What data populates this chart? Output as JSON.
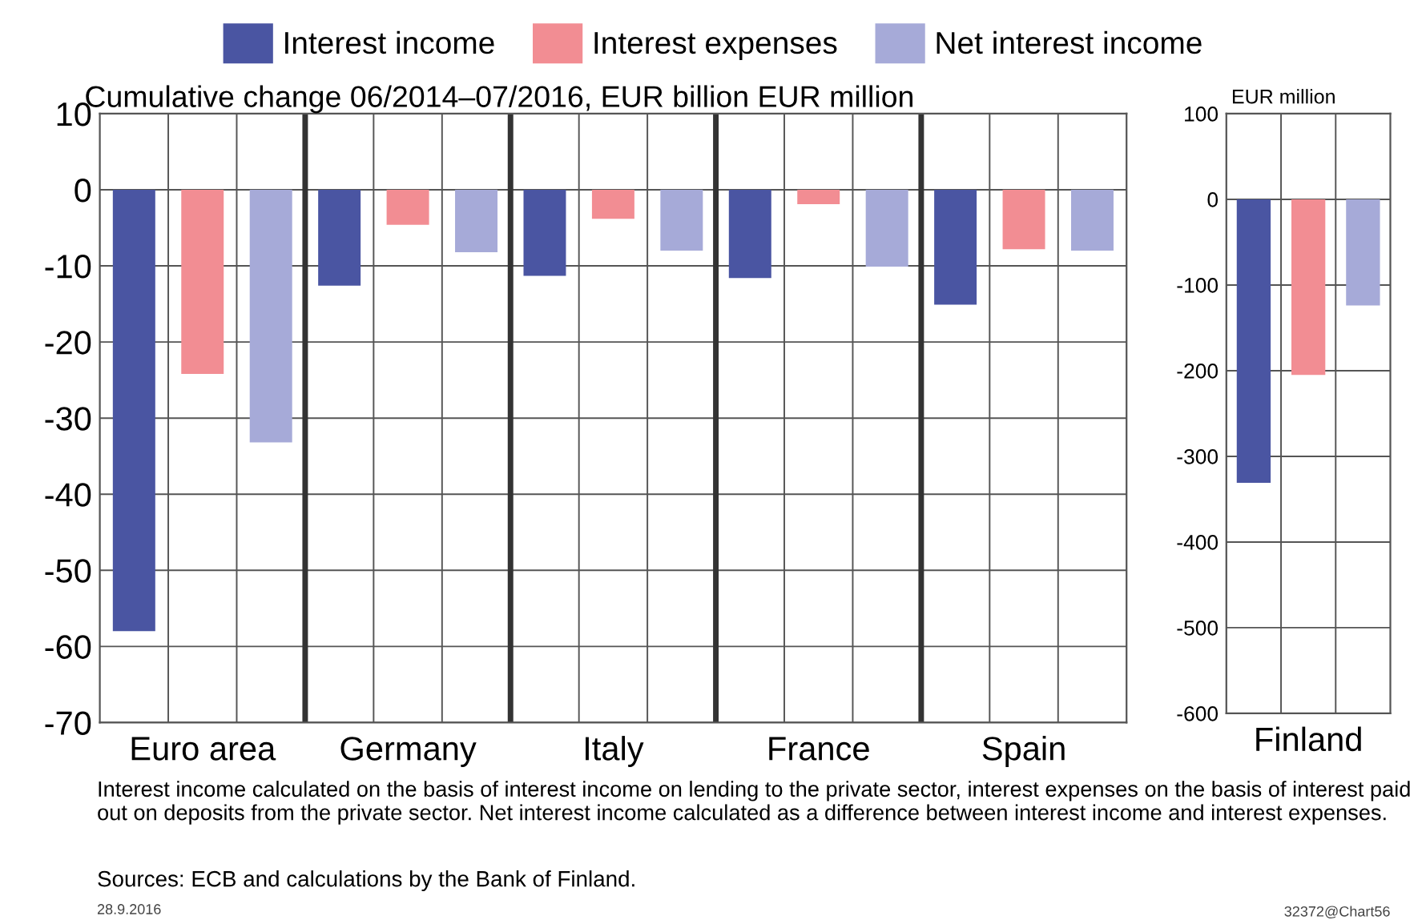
{
  "chart_data": [
    {
      "type": "bar",
      "title": "Cumulative change 06/2014–07/2016, EUR billion EUR million",
      "categories": [
        "Euro area",
        "Germany",
        "Italy",
        "France",
        "Spain"
      ],
      "series": [
        {
          "name": "Interest income",
          "color": "#4a55a2",
          "values": [
            -58,
            -12.6,
            -11.3,
            -11.6,
            -15.1
          ]
        },
        {
          "name": "Interest expenses",
          "color": "#f28d93",
          "values": [
            -24.2,
            -4.6,
            -3.8,
            -1.9,
            -7.8
          ]
        },
        {
          "name": "Net interest income",
          "color": "#a6aad8",
          "values": [
            -33.2,
            -8.2,
            -8.0,
            -10.1,
            -8.0
          ]
        }
      ],
      "ylim": [
        -70,
        10
      ],
      "yticks": [
        10,
        0,
        -10,
        -20,
        -30,
        -40,
        -50,
        -60,
        -70
      ],
      "grid": true,
      "legend": "top",
      "annotations": [
        "Interest income calculated on the basis of interest income on lending to the private sector, interest expenses on the basis of interest paid out on deposits from the private sector. Net interest income calculated as a difference between interest income and interest expenses.",
        "Sources: ECB and calculations by the Bank of Finland.",
        "28.9.2016",
        "32372@Chart56"
      ]
    },
    {
      "type": "bar",
      "ylabel": "EUR million",
      "categories": [
        "Finland"
      ],
      "series": [
        {
          "color": "#4a55a2",
          "values": [
            -331
          ]
        },
        {
          "color": "#f28d93",
          "values": [
            -205
          ]
        },
        {
          "color": "#a6aad8",
          "values": [
            -124
          ]
        }
      ],
      "ylim": [
        -600,
        100
      ],
      "yticks": [
        100,
        0,
        -100,
        -200,
        -300,
        -400,
        -500,
        -600
      ],
      "grid": true
    }
  ]
}
